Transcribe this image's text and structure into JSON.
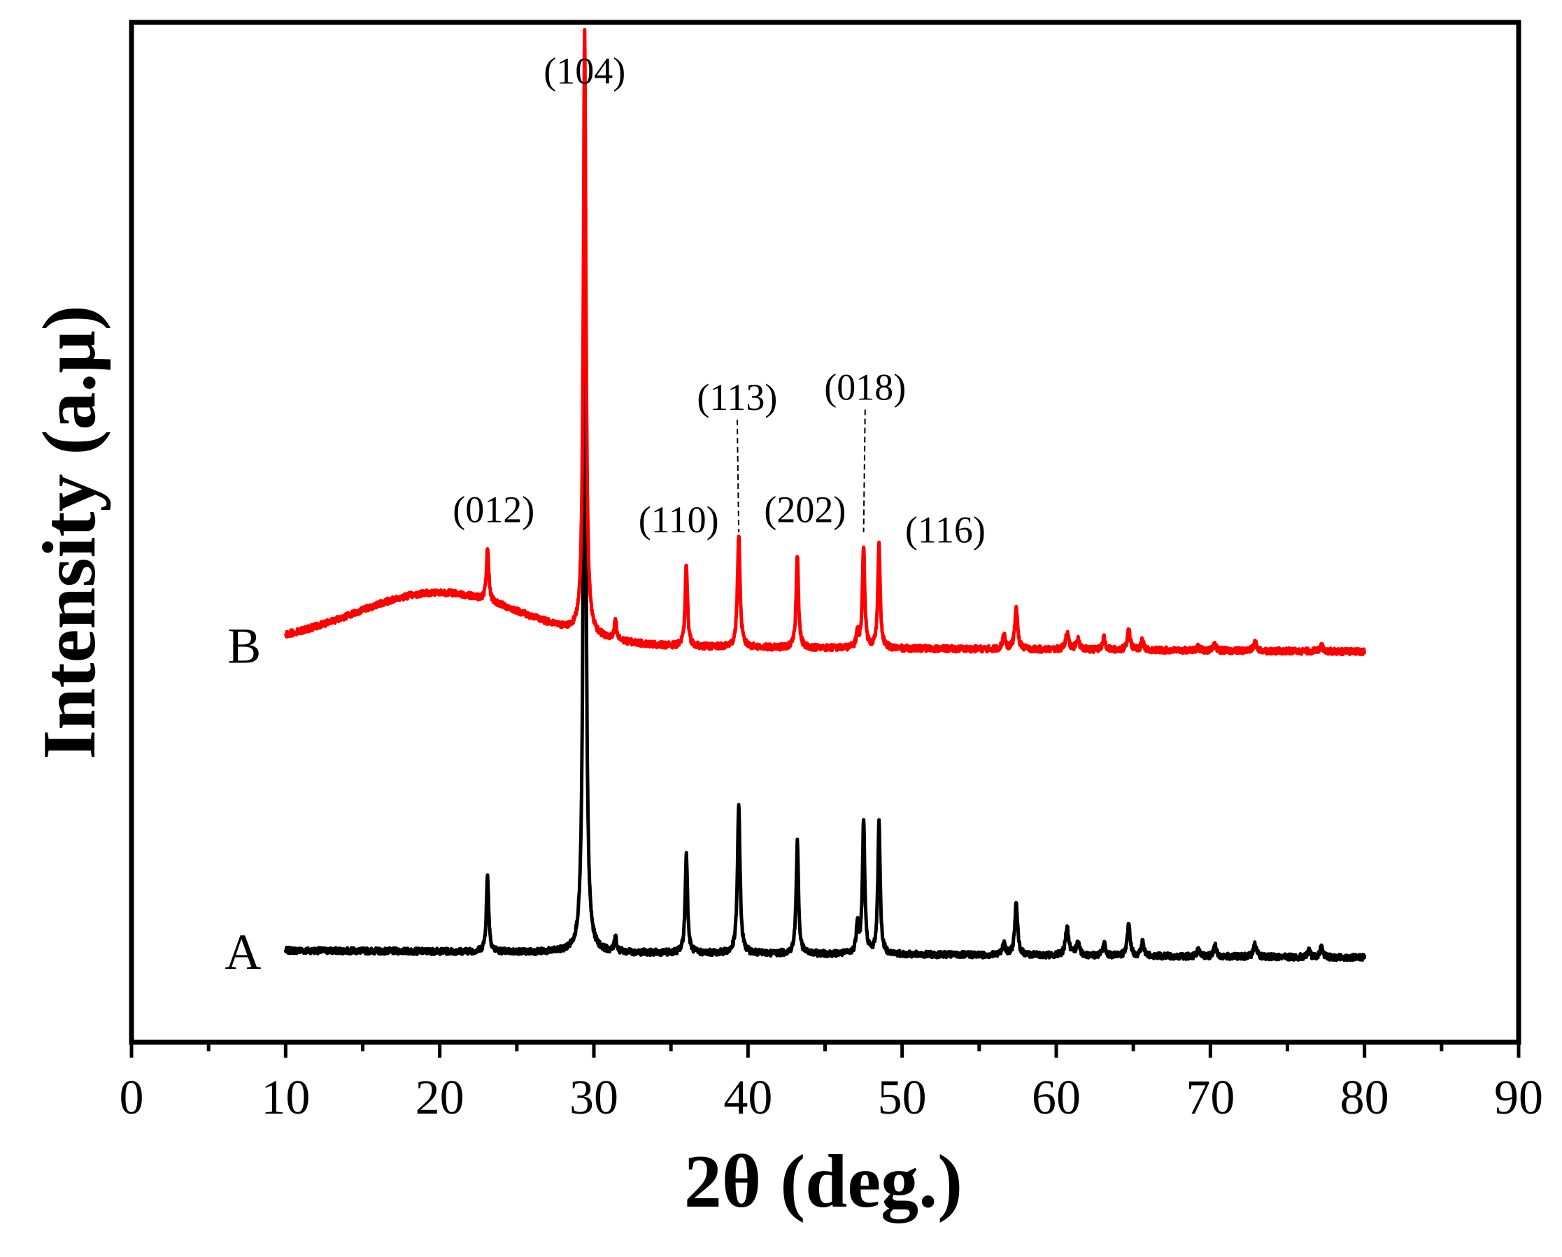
{
  "chart_data": {
    "type": "line",
    "title": "",
    "xlabel": "2θ (deg.)",
    "ylabel": "Intensity (a.μ)",
    "xlim": [
      0,
      90
    ],
    "xticks": [
      0,
      10,
      20,
      30,
      40,
      50,
      60,
      70,
      80,
      90
    ],
    "yticks_shown": false,
    "colors": {
      "A": "#000000",
      "B": "#ff0000",
      "axis": "#000000"
    },
    "series": [
      {
        "name": "A",
        "label": "A",
        "color": "#000000",
        "baseline": 0.09,
        "range": [
          10,
          80
        ],
        "peaks": [
          {
            "x": 23.1,
            "h": 0.075,
            "w": 0.18
          },
          {
            "x": 29.4,
            "h": 0.78,
            "w": 0.2
          },
          {
            "x": 31.4,
            "h": 0.016,
            "w": 0.15
          },
          {
            "x": 36.0,
            "h": 0.098,
            "w": 0.18
          },
          {
            "x": 39.4,
            "h": 0.145,
            "w": 0.2
          },
          {
            "x": 43.2,
            "h": 0.11,
            "w": 0.18
          },
          {
            "x": 47.1,
            "h": 0.03,
            "w": 0.18
          },
          {
            "x": 47.5,
            "h": 0.13,
            "w": 0.18
          },
          {
            "x": 48.5,
            "h": 0.13,
            "w": 0.18
          },
          {
            "x": 56.6,
            "h": 0.014,
            "w": 0.2
          },
          {
            "x": 57.4,
            "h": 0.05,
            "w": 0.22
          },
          {
            "x": 60.7,
            "h": 0.028,
            "w": 0.25
          },
          {
            "x": 61.4,
            "h": 0.014,
            "w": 0.25
          },
          {
            "x": 63.1,
            "h": 0.013,
            "w": 0.2
          },
          {
            "x": 64.7,
            "h": 0.03,
            "w": 0.22
          },
          {
            "x": 65.6,
            "h": 0.014,
            "w": 0.2
          },
          {
            "x": 69.2,
            "h": 0.007,
            "w": 0.2
          },
          {
            "x": 70.3,
            "h": 0.011,
            "w": 0.2
          },
          {
            "x": 72.9,
            "h": 0.012,
            "w": 0.25
          },
          {
            "x": 76.4,
            "h": 0.006,
            "w": 0.2
          },
          {
            "x": 77.2,
            "h": 0.011,
            "w": 0.2
          }
        ]
      },
      {
        "name": "B",
        "label": "B",
        "color": "#ff0000",
        "baseline": 0.39,
        "hump": {
          "x": 20,
          "h": 0.052,
          "w": 5.5
        },
        "range": [
          10,
          80
        ],
        "peaks": [
          {
            "x": 23.1,
            "h": 0.05,
            "w": 0.18
          },
          {
            "x": 29.4,
            "h": 0.59,
            "w": 0.2
          },
          {
            "x": 31.4,
            "h": 0.02,
            "w": 0.15
          },
          {
            "x": 36.0,
            "h": 0.08,
            "w": 0.18
          },
          {
            "x": 39.4,
            "h": 0.11,
            "w": 0.2
          },
          {
            "x": 43.2,
            "h": 0.092,
            "w": 0.18
          },
          {
            "x": 47.1,
            "h": 0.015,
            "w": 0.18
          },
          {
            "x": 47.5,
            "h": 0.1,
            "w": 0.18
          },
          {
            "x": 48.5,
            "h": 0.102,
            "w": 0.18
          },
          {
            "x": 56.6,
            "h": 0.015,
            "w": 0.2
          },
          {
            "x": 57.4,
            "h": 0.04,
            "w": 0.22
          },
          {
            "x": 60.7,
            "h": 0.016,
            "w": 0.25
          },
          {
            "x": 61.4,
            "h": 0.01,
            "w": 0.25
          },
          {
            "x": 63.1,
            "h": 0.012,
            "w": 0.2
          },
          {
            "x": 64.7,
            "h": 0.021,
            "w": 0.22
          },
          {
            "x": 65.6,
            "h": 0.01,
            "w": 0.2
          },
          {
            "x": 69.2,
            "h": 0.004,
            "w": 0.2
          },
          {
            "x": 70.3,
            "h": 0.006,
            "w": 0.2
          },
          {
            "x": 72.9,
            "h": 0.008,
            "w": 0.25
          },
          {
            "x": 77.2,
            "h": 0.007,
            "w": 0.2
          }
        ]
      }
    ],
    "annotations": [
      {
        "text": "(104)",
        "x": 29.4,
        "y": 0.94
      },
      {
        "text": "(012)",
        "x": 23.5,
        "y": 0.51
      },
      {
        "text": "(110)",
        "x": 35.5,
        "y": 0.5
      },
      {
        "text": "(113)",
        "x": 39.3,
        "y": 0.62,
        "leader_to": {
          "x": 39.4,
          "y": 0.5
        }
      },
      {
        "text": "(202)",
        "x": 43.7,
        "y": 0.51
      },
      {
        "text": "(018)",
        "x": 47.6,
        "y": 0.63,
        "leader_to": {
          "x": 47.5,
          "y": 0.5
        }
      },
      {
        "text": "(116)",
        "x": 52.8,
        "y": 0.49
      }
    ]
  }
}
